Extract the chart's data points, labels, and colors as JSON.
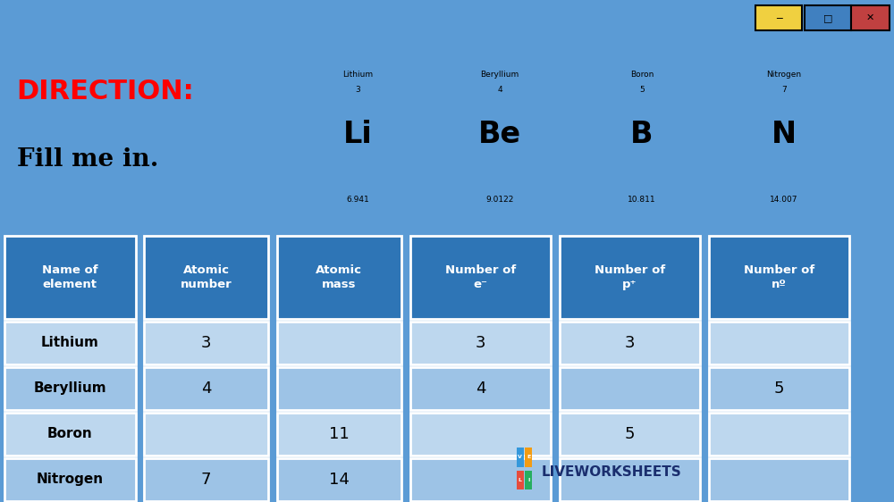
{
  "title1": "DIRECTION:",
  "title2": "Fill me in.",
  "bg_color": "#5b9bd5",
  "header_bg": "#2e75b6",
  "row_colors": [
    "#bdd7ee",
    "#9dc3e6"
  ],
  "col_headers": [
    "Name of\nelement",
    "Atomic\nnumber",
    "Atomic\nmass",
    "Number of\ne⁻",
    "Number of\np⁺",
    "Number of\nnº"
  ],
  "rows": [
    [
      "Lithium",
      "3",
      "",
      "3",
      "3",
      ""
    ],
    [
      "Beryllium",
      "4",
      "",
      "4",
      "",
      "5"
    ],
    [
      "Boron",
      "",
      "11",
      "",
      "5",
      ""
    ],
    [
      "Nitrogen",
      "7",
      "14",
      "",
      "",
      ""
    ]
  ],
  "elements": [
    {
      "name": "Lithium",
      "symbol": "Li",
      "number": "3",
      "mass": "6.941"
    },
    {
      "name": "Beryllium",
      "symbol": "Be",
      "number": "4",
      "mass": "9.0122"
    },
    {
      "name": "Boron",
      "symbol": "B",
      "number": "5",
      "mass": "10.811"
    },
    {
      "name": "Nitrogen",
      "symbol": "N",
      "number": "7",
      "mass": "14.007"
    }
  ],
  "window_bar_color": "#9b3a4a",
  "dark_bg": "#1a1a2e",
  "cyan_bg": "#a8e8f0",
  "yellow_accent": "#f0f020",
  "navy_text": "#1a2e6e",
  "scrollbar_blue": "#5b9bd5",
  "btn_yellow": "#f0d040",
  "btn_blue": "#4080c0",
  "btn_red": "#c04040",
  "livewks_blue": "#1a2e6e",
  "lw_colors": [
    "#e74c3c",
    "#27ae60",
    "#3498db",
    "#f39c12"
  ]
}
